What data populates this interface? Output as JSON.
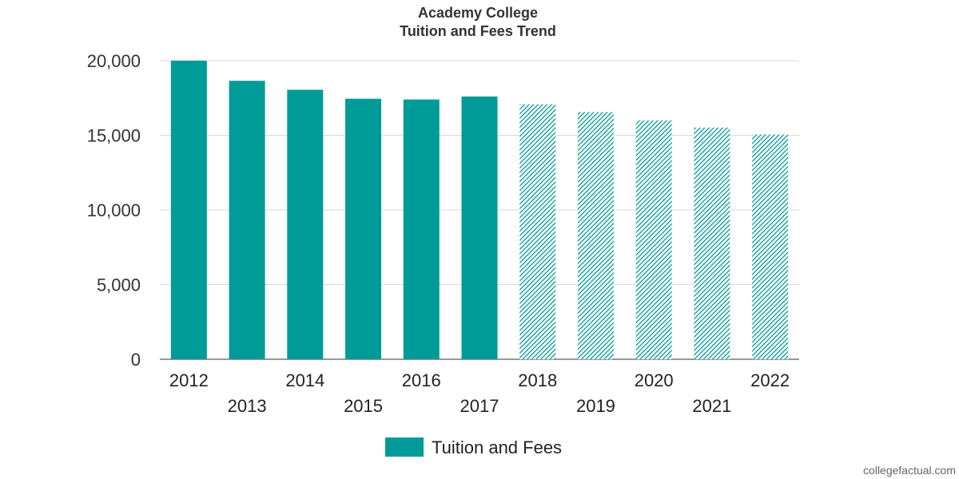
{
  "colors": {
    "bar": "#009b98",
    "grid": "#d9d9d9",
    "axis": "#333333"
  },
  "chart_data": {
    "type": "bar",
    "title": "Academy College",
    "subtitle": "Tuition and Fees Trend",
    "categories": [
      "2012",
      "2013",
      "2014",
      "2015",
      "2016",
      "2017",
      "2018",
      "2019",
      "2020",
      "2021",
      "2022"
    ],
    "series": [
      {
        "name": "Tuition and Fees",
        "values": [
          20000,
          18650,
          18050,
          17450,
          17400,
          17600,
          17080,
          16560,
          16000,
          15520,
          15060
        ],
        "projected": [
          false,
          false,
          false,
          false,
          false,
          false,
          true,
          true,
          true,
          true,
          true
        ]
      }
    ],
    "yticks": [
      "0",
      "5,000",
      "10,000",
      "15,000",
      "20,000"
    ],
    "ytick_values": [
      0,
      5000,
      10000,
      15000,
      20000
    ],
    "ylim": [
      0,
      20000
    ],
    "grid": true,
    "legend": "bottom-center"
  },
  "credit": "collegefactual.com"
}
